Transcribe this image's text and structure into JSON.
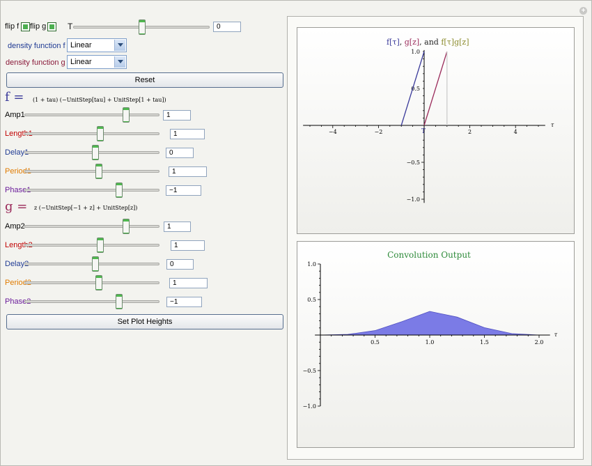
{
  "flip_f_label": "flip f",
  "flip_g_label": "flip g",
  "T_label": "T",
  "T_value": "0",
  "density_f_label": "density function f",
  "density_f_value": "Linear",
  "density_g_label": "density function g",
  "density_g_value": "Linear",
  "reset_label": "Reset",
  "f_symbol": "f =",
  "f_formula": "(1 + tau) (−UnitStep[tau] + UnitStep[1 + tau])",
  "g_symbol": "g =",
  "g_formula": "z (−UnitStep[−1 + z] + UnitStep[z])",
  "f_params": [
    {
      "label": "Amp1",
      "value": "1",
      "color": "#000000"
    },
    {
      "label": "Length1",
      "value": "1",
      "color": "#c00000"
    },
    {
      "label": "Delay1",
      "value": "0",
      "color": "#1f3a93"
    },
    {
      "label": "Period1",
      "value": "1",
      "color": "#e07b00"
    },
    {
      "label": "Phase1",
      "value": "−1",
      "color": "#6a1b9a"
    }
  ],
  "g_params": [
    {
      "label": "Amp2",
      "value": "1",
      "color": "#000000"
    },
    {
      "label": "Length2",
      "value": "1",
      "color": "#c00000"
    },
    {
      "label": "Delay2",
      "value": "0",
      "color": "#1f3a93"
    },
    {
      "label": "Period2",
      "value": "1",
      "color": "#e07b00"
    },
    {
      "label": "Phase2",
      "value": "−1",
      "color": "#6a1b9a"
    }
  ],
  "set_plot_heights_label": "Set Plot Heights",
  "colors": {
    "f": "#3a3a9a",
    "g": "#9a2a5a",
    "fg": "#8a8a2a",
    "conv_fill": "#7b7be6",
    "conv_title": "#2e8b3a"
  },
  "chart_data": [
    {
      "type": "line",
      "title_parts": [
        "f[τ]",
        ", ",
        "g[z]",
        ", and ",
        "f[τ]g[z]"
      ],
      "xlabel": "τ",
      "xlim": [
        -5.3,
        5.3
      ],
      "ylim": [
        -1.05,
        1.05
      ],
      "xticks": [
        "−4",
        "−2",
        "2",
        "4"
      ],
      "yticks": [
        "1.0",
        "0.5",
        "−0.5",
        "−1.0"
      ],
      "origin_label": "T",
      "series": [
        {
          "color": "#3a3a9a",
          "x": [
            -1,
            0
          ],
          "y": [
            0,
            1
          ]
        },
        {
          "color": "#9a2a5a",
          "x": [
            0,
            1
          ],
          "y": [
            0,
            1
          ]
        },
        {
          "color": "#cccccc",
          "x": [
            1,
            1
          ],
          "y": [
            0,
            1
          ]
        }
      ]
    },
    {
      "type": "area",
      "title": "Convolution Output",
      "xlabel": "τ",
      "xlim": [
        -0.05,
        2.1
      ],
      "ylim": [
        -1.0,
        1.0
      ],
      "xticks": [
        "0.5",
        "1.0",
        "1.5",
        "2.0"
      ],
      "yticks": [
        "1.0",
        "0.5",
        "−0.5",
        "−1.0"
      ],
      "x": [
        0,
        0.25,
        0.5,
        0.75,
        1.0,
        1.25,
        1.5,
        1.75,
        2.0
      ],
      "y": [
        0,
        0.009,
        0.063,
        0.191,
        0.333,
        0.253,
        0.104,
        0.021,
        0
      ]
    }
  ]
}
